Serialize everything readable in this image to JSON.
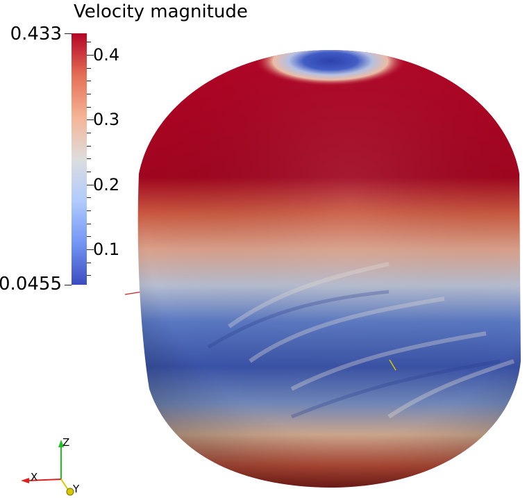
{
  "legend": {
    "title": "Velocity magnitude",
    "range_max": "0.433",
    "range_min": "0.0455",
    "ticks": [
      {
        "label": "0.4",
        "value": 0.4
      },
      {
        "label": "0.3",
        "value": 0.3
      },
      {
        "label": "0.2",
        "value": 0.2
      },
      {
        "label": "0.1",
        "value": 0.1
      }
    ],
    "min_value": 0.0455,
    "max_value": 0.433,
    "colormap": [
      "#3b4cc0",
      "#7396f5",
      "#b0cbfc",
      "#dddddd",
      "#f5b495",
      "#e46e56",
      "#b40426"
    ]
  },
  "axes": {
    "x_label": "X",
    "y_label": "Y",
    "z_label": "Z",
    "x_color": "#e02020",
    "y_color": "#d8c800",
    "z_color": "#20c020"
  }
}
